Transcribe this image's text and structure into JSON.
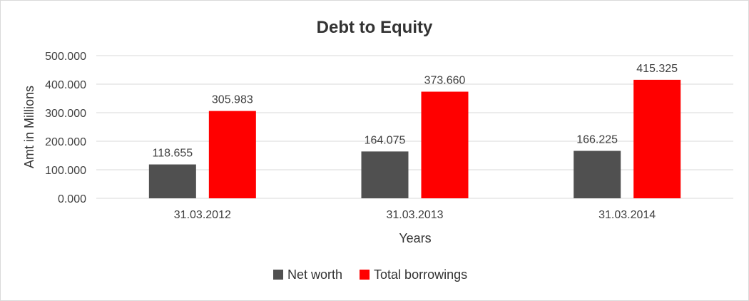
{
  "chart_data": {
    "type": "bar",
    "title": "Debt to Equity",
    "xlabel": "Years",
    "ylabel": "Amt in Millions",
    "categories": [
      "31.03.2012",
      "31.03.2013",
      "31.03.2014"
    ],
    "series": [
      {
        "name": "Net worth",
        "color": "#505050",
        "values": [
          118.655,
          164.075,
          166.225
        ],
        "labels": [
          "118.655",
          "164.075",
          "166.225"
        ]
      },
      {
        "name": "Total borrowings",
        "color": "#ff0000",
        "values": [
          305.983,
          373.66,
          415.325
        ],
        "labels": [
          "305.983",
          "373.660",
          "415.325"
        ]
      }
    ],
    "ylim": [
      0,
      500
    ],
    "yticks": [
      0,
      100,
      200,
      300,
      400,
      500
    ],
    "ytick_labels": [
      "0.000",
      "100.000",
      "200.000",
      "300.000",
      "400.000",
      "500.000"
    ],
    "grid": true,
    "legend_position": "bottom"
  }
}
